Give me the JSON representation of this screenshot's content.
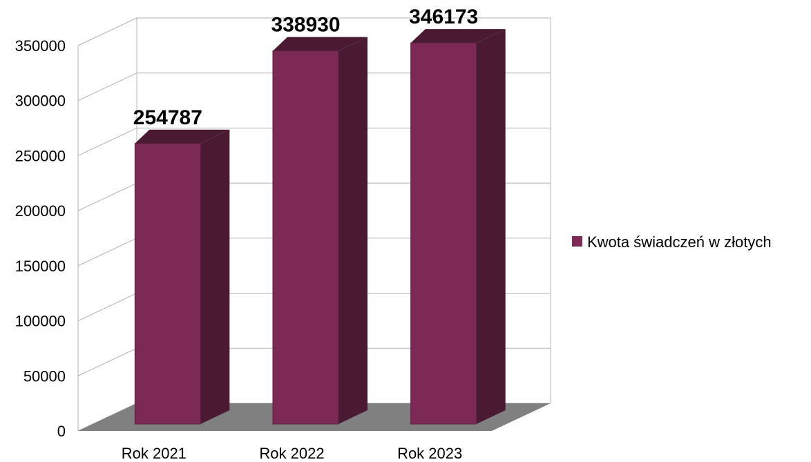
{
  "chart_data": {
    "type": "bar",
    "style": "3d-column",
    "categories": [
      "Rok 2021",
      "Rok 2022",
      "Rok 2023"
    ],
    "series": [
      {
        "name": "Kwota świadczeń w złotych",
        "values": [
          254787,
          338930,
          346173
        ],
        "color": "#7b2a56"
      }
    ],
    "data_labels": [
      "254787",
      "338930",
      "346173"
    ],
    "ylim": [
      0,
      350000
    ],
    "yticks": [
      0,
      50000,
      100000,
      150000,
      200000,
      250000,
      300000,
      350000
    ],
    "ytick_labels": [
      "0",
      "50000",
      "100000",
      "150000",
      "200000",
      "250000",
      "300000",
      "350000"
    ],
    "grid": true,
    "legend_position": "right",
    "title": "",
    "xlabel": "",
    "ylabel": "",
    "colors": {
      "bar_front": "#7b2a56",
      "bar_side": "#4a1a33",
      "floor": "#808080",
      "grid": "#b3b3b3"
    }
  }
}
